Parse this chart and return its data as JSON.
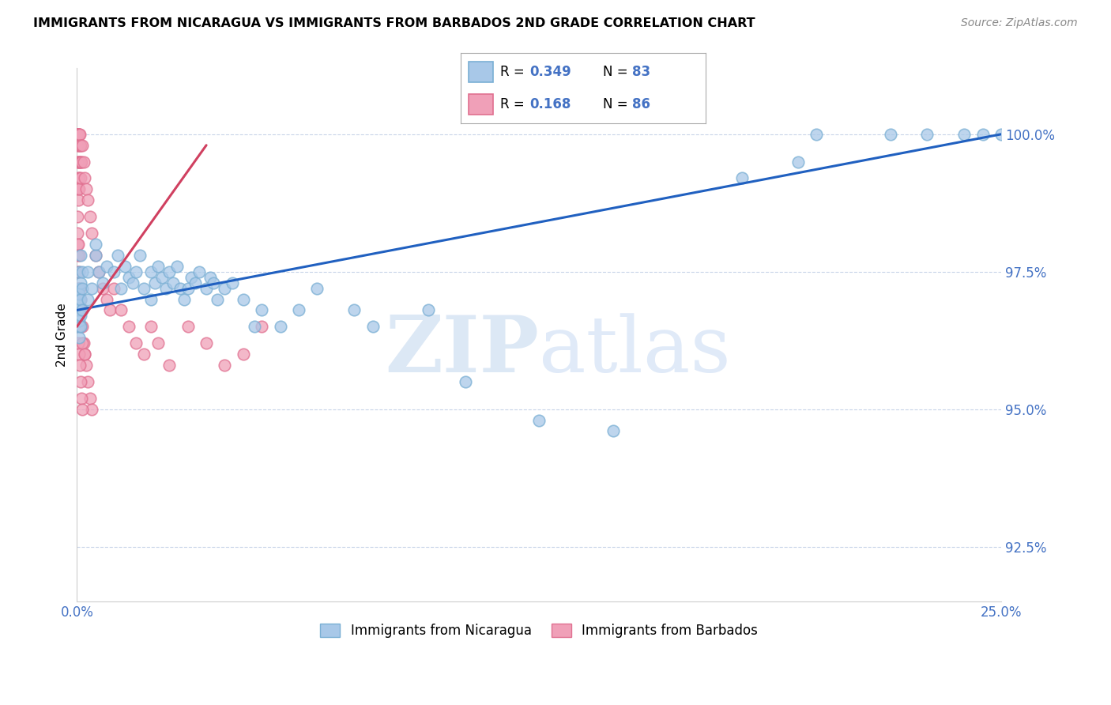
{
  "title": "IMMIGRANTS FROM NICARAGUA VS IMMIGRANTS FROM BARBADOS 2ND GRADE CORRELATION CHART",
  "source": "Source: ZipAtlas.com",
  "ylabel": "2nd Grade",
  "xlim": [
    0.0,
    25.0
  ],
  "ylim": [
    91.5,
    101.2
  ],
  "yticks": [
    92.5,
    95.0,
    97.5,
    100.0
  ],
  "ytick_labels": [
    "92.5%",
    "95.0%",
    "97.5%",
    "100.0%"
  ],
  "xticks": [
    0.0,
    5.0,
    10.0,
    15.0,
    20.0,
    25.0
  ],
  "xtick_labels": [
    "0.0%",
    "",
    "",
    "",
    "",
    "25.0%"
  ],
  "nicaragua_color": "#a8c8e8",
  "barbados_color": "#f0a0b8",
  "nicaragua_edge": "#7aafd4",
  "barbados_edge": "#e07090",
  "trendline_nicaragua_color": "#2060c0",
  "trendline_barbados_color": "#d04060",
  "background_color": "#ffffff",
  "watermark_color": "#dce8f5",
  "legend_nicaragua": "Immigrants from Nicaragua",
  "legend_barbados": "Immigrants from Barbados",
  "nicaragua_x": [
    0.05,
    0.05,
    0.05,
    0.05,
    0.05,
    0.05,
    0.05,
    0.05,
    0.05,
    0.1,
    0.1,
    0.1,
    0.1,
    0.1,
    0.15,
    0.15,
    0.15,
    0.3,
    0.3,
    0.4,
    0.5,
    0.5,
    0.6,
    0.7,
    0.8,
    1.0,
    1.1,
    1.2,
    1.3,
    1.4,
    1.5,
    1.6,
    1.7,
    1.8,
    2.0,
    2.0,
    2.1,
    2.2,
    2.3,
    2.4,
    2.5,
    2.6,
    2.7,
    2.8,
    2.9,
    3.0,
    3.1,
    3.2,
    3.3,
    3.5,
    3.6,
    3.7,
    3.8,
    4.0,
    4.2,
    4.5,
    4.8,
    5.0,
    5.5,
    6.0,
    6.5,
    7.5,
    8.0,
    9.5,
    10.5,
    12.5,
    14.5,
    18.0,
    19.5,
    20.0,
    22.0,
    23.0,
    24.0,
    24.5,
    25.0
  ],
  "nicaragua_y": [
    96.8,
    97.0,
    97.2,
    97.5,
    96.5,
    96.3,
    96.6,
    96.9,
    97.1,
    96.7,
    97.0,
    97.3,
    96.5,
    97.8,
    97.2,
    96.8,
    97.5,
    97.0,
    97.5,
    97.2,
    97.8,
    98.0,
    97.5,
    97.3,
    97.6,
    97.5,
    97.8,
    97.2,
    97.6,
    97.4,
    97.3,
    97.5,
    97.8,
    97.2,
    97.0,
    97.5,
    97.3,
    97.6,
    97.4,
    97.2,
    97.5,
    97.3,
    97.6,
    97.2,
    97.0,
    97.2,
    97.4,
    97.3,
    97.5,
    97.2,
    97.4,
    97.3,
    97.0,
    97.2,
    97.3,
    97.0,
    96.5,
    96.8,
    96.5,
    96.8,
    97.2,
    96.8,
    96.5,
    96.8,
    95.5,
    94.8,
    94.6,
    99.2,
    99.5,
    100.0,
    100.0,
    100.0,
    100.0,
    100.0,
    100.0
  ],
  "barbados_x": [
    0.02,
    0.02,
    0.02,
    0.02,
    0.02,
    0.02,
    0.02,
    0.02,
    0.02,
    0.02,
    0.03,
    0.03,
    0.03,
    0.03,
    0.03,
    0.03,
    0.03,
    0.05,
    0.05,
    0.05,
    0.05,
    0.05,
    0.08,
    0.08,
    0.08,
    0.1,
    0.1,
    0.1,
    0.12,
    0.15,
    0.18,
    0.2,
    0.25,
    0.3,
    0.35,
    0.4,
    0.5,
    0.6,
    0.7,
    0.8,
    0.9,
    1.0,
    1.2,
    1.4,
    1.6,
    1.8,
    2.0,
    2.2,
    2.5,
    3.0,
    3.5,
    4.0,
    4.5,
    5.0,
    0.02,
    0.03,
    0.05,
    0.05,
    0.08,
    0.1,
    0.12,
    0.15,
    0.18,
    0.2,
    0.25,
    0.3,
    0.35,
    0.4,
    0.02,
    0.03,
    0.05,
    0.08,
    0.1,
    0.12,
    0.15,
    0.02,
    0.03,
    0.05,
    0.08,
    0.1,
    0.15,
    0.2
  ],
  "barbados_y": [
    99.8,
    100.0,
    100.0,
    100.0,
    100.0,
    99.5,
    99.0,
    98.5,
    98.0,
    97.8,
    100.0,
    100.0,
    99.8,
    99.5,
    99.2,
    99.0,
    98.8,
    100.0,
    100.0,
    99.5,
    99.2,
    99.0,
    100.0,
    99.8,
    99.5,
    99.8,
    99.5,
    99.2,
    99.5,
    99.8,
    99.5,
    99.2,
    99.0,
    98.8,
    98.5,
    98.2,
    97.8,
    97.5,
    97.2,
    97.0,
    96.8,
    97.2,
    96.8,
    96.5,
    96.2,
    96.0,
    96.5,
    96.2,
    95.8,
    96.5,
    96.2,
    95.8,
    96.0,
    96.5,
    98.2,
    98.0,
    97.8,
    97.5,
    97.2,
    97.0,
    96.8,
    96.5,
    96.2,
    96.0,
    95.8,
    95.5,
    95.2,
    95.0,
    96.5,
    96.2,
    96.0,
    95.8,
    95.5,
    95.2,
    95.0,
    97.5,
    97.2,
    97.0,
    96.8,
    96.5,
    96.2,
    96.0
  ],
  "trendline_nicaragua_x0": 0.0,
  "trendline_nicaragua_x1": 25.0,
  "trendline_nicaragua_y0": 96.8,
  "trendline_nicaragua_y1": 100.0,
  "trendline_barbados_x0": 0.0,
  "trendline_barbados_x1": 3.5,
  "trendline_barbados_y0": 96.5,
  "trendline_barbados_y1": 99.8
}
